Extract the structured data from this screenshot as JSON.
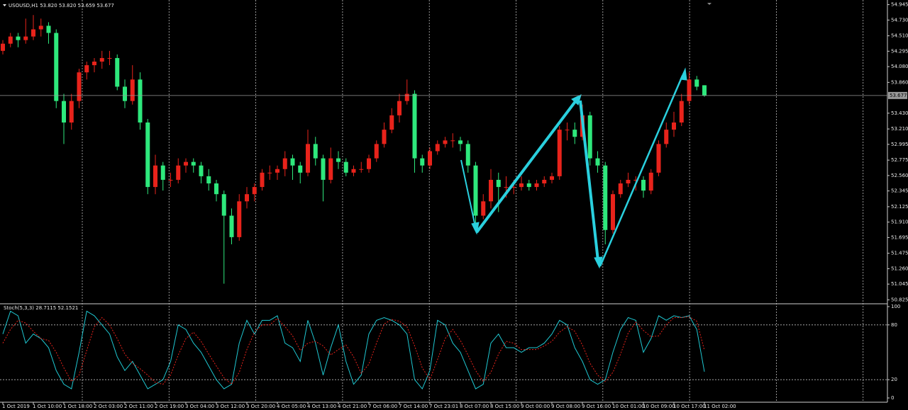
{
  "chart_data": [
    {
      "type": "candlestick",
      "title": "USOUSD,H1 53.820 53.820 53.659 53.677",
      "categories": [
        "1 Oct 2019",
        null,
        null,
        null,
        "1 Oct 10:00",
        null,
        null,
        null,
        "1 Oct 18:00",
        null,
        null,
        null,
        "2 Oct 03:00",
        null,
        null,
        null,
        "2 Oct 11:00",
        null,
        null,
        null,
        "2 Oct 19:00",
        null,
        null,
        null,
        "3 Oct 04:00",
        null,
        null,
        null,
        "3 Oct 12:00",
        null,
        null,
        null,
        "3 Oct 20:00",
        null,
        null,
        null,
        "4 Oct 05:00",
        null,
        null,
        null,
        "4 Oct 13:00",
        null,
        null,
        null,
        "4 Oct 21:00",
        null,
        null,
        null,
        "7 Oct 06:00",
        null,
        null,
        null,
        "7 Oct 14:00",
        null,
        null,
        null,
        "7 Oct 23:01",
        null,
        null,
        null,
        "8 Oct 07:00",
        null,
        null,
        null,
        "8 Oct 15:00",
        null,
        null,
        null,
        "9 Oct 00:00",
        null,
        null,
        null,
        "9 Oct 08:00",
        null,
        null,
        null,
        "9 Oct 16:00",
        null,
        null,
        null,
        "10 Oct 01:00",
        null,
        null,
        null,
        "10 Oct 09:00",
        null,
        null,
        null,
        "10 Oct 17:00",
        null,
        null,
        null,
        "11 Oct 02:00"
      ],
      "ohlc": [
        [
          54.3,
          54.45,
          54.25,
          54.4
        ],
        [
          54.4,
          54.55,
          54.35,
          54.5
        ],
        [
          54.5,
          54.55,
          54.35,
          54.45
        ],
        [
          54.45,
          54.75,
          54.4,
          54.5
        ],
        [
          54.5,
          54.8,
          54.45,
          54.6
        ],
        [
          54.6,
          54.75,
          54.5,
          54.65
        ],
        [
          54.65,
          54.7,
          54.4,
          54.55
        ],
        [
          54.55,
          54.6,
          53.5,
          53.6
        ],
        [
          53.6,
          53.7,
          53.0,
          53.3
        ],
        [
          53.3,
          53.7,
          53.2,
          53.6
        ],
        [
          53.6,
          54.05,
          53.5,
          54.0
        ],
        [
          54.0,
          54.15,
          53.9,
          54.1
        ],
        [
          54.1,
          54.2,
          54.0,
          54.15
        ],
        [
          54.15,
          54.3,
          54.05,
          54.2
        ],
        [
          54.2,
          54.3,
          54.1,
          54.2
        ],
        [
          54.2,
          54.25,
          53.75,
          53.8
        ],
        [
          53.8,
          53.9,
          53.5,
          53.6
        ],
        [
          53.6,
          54.1,
          53.55,
          53.9
        ],
        [
          53.9,
          54.0,
          53.2,
          53.3
        ],
        [
          53.3,
          53.35,
          52.3,
          52.4
        ],
        [
          52.4,
          52.85,
          52.3,
          52.7
        ],
        [
          52.7,
          52.75,
          52.35,
          52.5
        ],
        [
          52.5,
          52.6,
          52.4,
          52.5
        ],
        [
          52.5,
          52.8,
          52.45,
          52.7
        ],
        [
          52.7,
          52.8,
          52.6,
          52.75
        ],
        [
          52.75,
          52.8,
          52.6,
          52.7
        ],
        [
          52.7,
          52.75,
          52.45,
          52.55
        ],
        [
          52.55,
          52.65,
          52.35,
          52.45
        ],
        [
          52.45,
          52.5,
          52.2,
          52.3
        ],
        [
          52.3,
          52.35,
          51.05,
          52.0
        ],
        [
          52.0,
          52.1,
          51.6,
          51.7
        ],
        [
          51.7,
          52.3,
          51.65,
          52.2
        ],
        [
          52.2,
          52.4,
          52.1,
          52.3
        ],
        [
          52.3,
          52.45,
          52.2,
          52.4
        ],
        [
          52.4,
          52.65,
          52.35,
          52.6
        ],
        [
          52.6,
          52.7,
          52.5,
          52.6
        ],
        [
          52.6,
          52.7,
          52.5,
          52.65
        ],
        [
          52.65,
          52.9,
          52.55,
          52.8
        ],
        [
          52.8,
          52.85,
          52.5,
          52.7
        ],
        [
          52.7,
          52.75,
          52.45,
          52.6
        ],
        [
          52.6,
          53.2,
          52.55,
          53.0
        ],
        [
          53.0,
          53.1,
          52.7,
          52.8
        ],
        [
          52.8,
          52.85,
          52.2,
          52.5
        ],
        [
          52.5,
          52.95,
          52.45,
          52.8
        ],
        [
          52.8,
          52.9,
          52.65,
          52.75
        ],
        [
          52.75,
          52.8,
          52.55,
          52.6
        ],
        [
          52.6,
          52.7,
          52.55,
          52.65
        ],
        [
          52.65,
          52.75,
          52.6,
          52.65
        ],
        [
          52.65,
          52.85,
          52.6,
          52.8
        ],
        [
          52.8,
          53.05,
          52.75,
          53.0
        ],
        [
          53.0,
          53.3,
          52.95,
          53.2
        ],
        [
          53.2,
          53.5,
          53.15,
          53.4
        ],
        [
          53.4,
          53.7,
          53.3,
          53.6
        ],
        [
          53.6,
          53.9,
          53.55,
          53.7
        ],
        [
          53.7,
          53.75,
          52.6,
          52.8
        ],
        [
          52.8,
          52.85,
          52.6,
          52.7
        ],
        [
          52.7,
          52.95,
          52.65,
          52.9
        ],
        [
          52.9,
          53.05,
          52.85,
          53.0
        ],
        [
          53.0,
          53.1,
          52.95,
          53.05
        ],
        [
          53.05,
          53.15,
          52.95,
          53.05
        ],
        [
          53.05,
          53.1,
          52.9,
          53.0
        ],
        [
          53.0,
          53.05,
          52.6,
          52.7
        ],
        [
          52.7,
          52.75,
          51.85,
          52.0
        ],
        [
          52.0,
          52.3,
          51.95,
          52.2
        ],
        [
          52.2,
          52.65,
          52.1,
          52.5
        ],
        [
          52.5,
          52.6,
          52.05,
          52.4
        ],
        [
          52.4,
          52.55,
          52.25,
          52.4
        ],
        [
          52.4,
          52.5,
          52.3,
          52.4
        ],
        [
          52.4,
          52.55,
          52.35,
          52.45
        ],
        [
          52.45,
          52.5,
          52.35,
          52.4
        ],
        [
          52.4,
          52.5,
          52.35,
          52.45
        ],
        [
          52.45,
          52.55,
          52.4,
          52.5
        ],
        [
          52.5,
          52.6,
          52.45,
          52.55
        ],
        [
          52.55,
          53.25,
          52.5,
          53.2
        ],
        [
          53.2,
          53.3,
          53.05,
          53.2
        ],
        [
          53.2,
          53.3,
          53.0,
          53.1
        ],
        [
          53.1,
          53.55,
          53.05,
          53.4
        ],
        [
          53.4,
          53.45,
          52.7,
          52.8
        ],
        [
          52.8,
          52.9,
          52.6,
          52.7
        ],
        [
          52.7,
          52.75,
          51.6,
          51.8
        ],
        [
          51.8,
          52.35,
          51.75,
          52.3
        ],
        [
          52.3,
          52.5,
          52.25,
          52.45
        ],
        [
          52.45,
          52.6,
          52.4,
          52.5
        ],
        [
          52.5,
          52.55,
          52.35,
          52.5
        ],
        [
          52.5,
          52.55,
          52.25,
          52.35
        ],
        [
          52.35,
          52.65,
          52.3,
          52.6
        ],
        [
          52.6,
          53.05,
          52.55,
          53.0
        ],
        [
          53.0,
          53.3,
          52.95,
          53.2
        ],
        [
          53.2,
          53.45,
          53.1,
          53.3
        ],
        [
          53.3,
          53.7,
          53.25,
          53.6
        ],
        [
          53.6,
          54.0,
          53.55,
          53.9
        ],
        [
          53.9,
          53.95,
          53.75,
          53.8
        ],
        [
          53.82,
          53.82,
          53.659,
          53.677
        ]
      ],
      "up_color": "#e8231b",
      "down_color": "#2ee87c",
      "current_price": 53.677,
      "ylim": [
        50.78,
        54.99
      ],
      "yticks": [
        54.945,
        {
          "value": 54.73,
          "label": "54.730"
        },
        {
          "value": 54.51,
          "label": "54.510"
        },
        54.295,
        {
          "value": 54.08,
          "label": "54.080"
        },
        {
          "value": 53.86,
          "label": "53.860"
        },
        {
          "value": 53.43,
          "label": "53.430"
        },
        {
          "value": 53.21,
          "label": "53.210"
        },
        52.995,
        52.775,
        {
          "value": 52.56,
          "label": "52.560"
        },
        52.345,
        52.125,
        {
          "value": 51.91,
          "label": "51.910"
        },
        51.695,
        51.475,
        {
          "value": 51.26,
          "label": "51.260"
        },
        51.045,
        50.825
      ]
    },
    {
      "type": "line",
      "title": "Stoch(5,3,3) 28.7115 52.1521",
      "series": [
        {
          "color": "#1fc8d2",
          "values": [
            70,
            95,
            90,
            60,
            70,
            65,
            55,
            30,
            15,
            10,
            50,
            95,
            90,
            80,
            70,
            45,
            30,
            40,
            25,
            10,
            15,
            20,
            40,
            80,
            75,
            60,
            50,
            35,
            20,
            10,
            15,
            60,
            85,
            70,
            85,
            85,
            90,
            60,
            55,
            40,
            85,
            60,
            25,
            55,
            80,
            40,
            15,
            25,
            70,
            85,
            88,
            85,
            80,
            70,
            20,
            10,
            30,
            85,
            80,
            60,
            50,
            30,
            10,
            15,
            60,
            70,
            55,
            55,
            50,
            55,
            55,
            60,
            70,
            85,
            80,
            55,
            40,
            20,
            15,
            20,
            50,
            75,
            88,
            85,
            50,
            65,
            90,
            85,
            90,
            88,
            90,
            75,
            28.7115
          ]
        },
        {
          "color": "#e8231b",
          "dashed": true,
          "values": [
            60,
            75,
            85,
            82,
            73,
            65,
            63,
            50,
            33,
            18,
            25,
            52,
            78,
            88,
            80,
            65,
            48,
            38,
            32,
            25,
            17,
            15,
            25,
            47,
            65,
            72,
            62,
            48,
            35,
            22,
            15,
            28,
            53,
            72,
            80,
            80,
            87,
            78,
            68,
            52,
            60,
            62,
            57,
            47,
            53,
            58,
            45,
            27,
            37,
            60,
            81,
            86,
            84,
            78,
            57,
            33,
            20,
            42,
            65,
            75,
            63,
            47,
            30,
            18,
            28,
            48,
            62,
            60,
            53,
            53,
            53,
            57,
            62,
            72,
            78,
            73,
            58,
            38,
            25,
            18,
            28,
            48,
            71,
            83,
            74,
            67,
            68,
            80,
            88,
            88,
            89,
            84,
            52.1521
          ]
        }
      ],
      "ylim": [
        0,
        100
      ],
      "yticks": [
        0,
        20,
        80,
        100
      ]
    }
  ]
}
